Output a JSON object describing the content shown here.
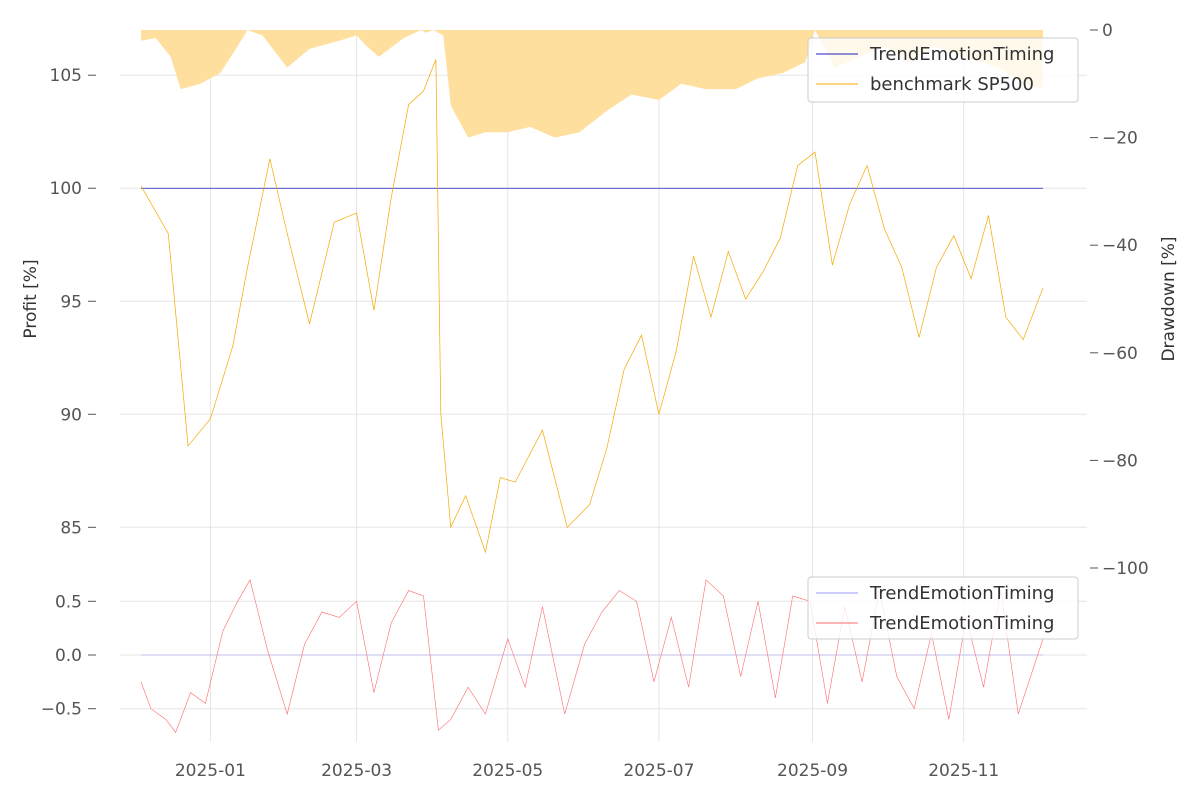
{
  "colors": {
    "strategy": "#1f1fbf",
    "benchmark": "#f5a800",
    "drawdown_fill": "#ffdf9e",
    "indicator_blue": "#9999ff",
    "indicator_red": "#ff6b6b",
    "grid": "#e5e5e5",
    "tick_text": "#555555"
  },
  "chart_data": [
    {
      "type": "line",
      "name": "profit-panel",
      "ylabel": "Profit [%]",
      "ylim": [
        83.2,
        107.0
      ],
      "yticks": [
        85,
        90,
        95,
        100,
        105
      ],
      "ytick_labels": [
        "85",
        "90",
        "95",
        "100",
        "105"
      ],
      "y2label": "Drawdown [%]",
      "y2lim": [
        -100,
        0
      ],
      "y2ticks": [
        0,
        -20,
        -40,
        -60,
        -80,
        -100
      ],
      "y2tick_labels": [
        "0",
        "−20",
        "−40",
        "−60",
        "−80",
        "−100"
      ],
      "grid": true,
      "legend_position": "top-right",
      "legend": [
        "TrendEmotionTiming",
        "benchmark SP500"
      ],
      "x": [
        "2024-12-04",
        "2024-12-15",
        "2024-12-23",
        "2025-01-01",
        "2025-01-10",
        "2025-01-16",
        "2025-01-25",
        "2025-02-01",
        "2025-02-10",
        "2025-02-20",
        "2025-03-01",
        "2025-03-08",
        "2025-03-15",
        "2025-03-22",
        "2025-03-28",
        "2025-04-02",
        "2025-04-04",
        "2025-04-08",
        "2025-04-14",
        "2025-04-22",
        "2025-04-28",
        "2025-05-04",
        "2025-05-15",
        "2025-05-25",
        "2025-06-03",
        "2025-06-10",
        "2025-06-17",
        "2025-06-24",
        "2025-07-01",
        "2025-07-08",
        "2025-07-15",
        "2025-07-22",
        "2025-07-29",
        "2025-08-05",
        "2025-08-12",
        "2025-08-19",
        "2025-08-26",
        "2025-09-02",
        "2025-09-09",
        "2025-09-16",
        "2025-09-23",
        "2025-09-30",
        "2025-10-07",
        "2025-10-14",
        "2025-10-21",
        "2025-10-28",
        "2025-11-04",
        "2025-11-11",
        "2025-11-18",
        "2025-11-25",
        "2025-12-03"
      ],
      "series": [
        {
          "name": "TrendEmotionTiming",
          "color": "#1f1fbf",
          "values": [
            100,
            100,
            100,
            100,
            100,
            100,
            100,
            100,
            100,
            100,
            100,
            100,
            100,
            100,
            100,
            100,
            100,
            100,
            100,
            100,
            100,
            100,
            100,
            100,
            100,
            100,
            100,
            100,
            100,
            100,
            100,
            100,
            100,
            100,
            100,
            100,
            100,
            100,
            100,
            100,
            100,
            100,
            100,
            100,
            100,
            100,
            100,
            100,
            100,
            100,
            100
          ]
        },
        {
          "name": "benchmark SP500",
          "color": "#f5a800",
          "values": [
            100.1,
            98.0,
            88.6,
            89.8,
            93.0,
            96.5,
            101.3,
            98.0,
            94.0,
            98.5,
            98.9,
            94.6,
            99.6,
            103.7,
            104.3,
            105.7,
            90.0,
            85.0,
            86.4,
            83.9,
            87.2,
            87.0,
            89.3,
            85.0,
            86.0,
            88.5,
            92.0,
            93.5,
            90.0,
            92.8,
            97.0,
            94.3,
            97.2,
            95.1,
            96.3,
            97.8,
            101.0,
            101.6,
            96.6,
            99.3,
            101.0,
            98.2,
            96.5,
            93.4,
            96.5,
            97.9,
            96.0,
            98.8,
            94.3,
            93.3,
            95.6
          ]
        }
      ],
      "drawdown": {
        "name": "drawdown",
        "color": "#ffdf9e",
        "x": [
          "2024-12-04",
          "2024-12-10",
          "2024-12-16",
          "2024-12-20",
          "2024-12-28",
          "2025-01-05",
          "2025-01-12",
          "2025-01-16",
          "2025-01-22",
          "2025-02-01",
          "2025-02-10",
          "2025-02-22",
          "2025-03-01",
          "2025-03-05",
          "2025-03-10",
          "2025-03-20",
          "2025-03-27",
          "2025-03-29",
          "2025-04-01",
          "2025-04-03",
          "2025-04-05",
          "2025-04-08",
          "2025-04-15",
          "2025-04-22",
          "2025-05-01",
          "2025-05-10",
          "2025-05-20",
          "2025-05-30",
          "2025-06-10",
          "2025-06-20",
          "2025-07-01",
          "2025-07-10",
          "2025-07-20",
          "2025-08-01",
          "2025-08-10",
          "2025-08-20",
          "2025-08-29",
          "2025-09-02",
          "2025-09-10",
          "2025-09-20",
          "2025-09-30",
          "2025-10-10",
          "2025-10-20",
          "2025-11-01",
          "2025-11-15",
          "2025-11-25",
          "2025-12-03"
        ],
        "values": [
          -2,
          -1.5,
          -5,
          -11,
          -10,
          -8,
          -3,
          0,
          -1,
          -7,
          -3.5,
          -2,
          -1,
          -3,
          -5,
          -1.5,
          0,
          -0.5,
          0,
          -0.5,
          -1,
          -14,
          -20,
          -19,
          -19,
          -18,
          -20,
          -19,
          -15,
          -12,
          -13,
          -10,
          -11,
          -11,
          -9,
          -8,
          -6,
          0,
          -7,
          -5,
          -3,
          -6,
          -3,
          -5,
          -7,
          -10,
          -11
        ]
      }
    },
    {
      "type": "line",
      "name": "indicator-panel",
      "ylim": [
        -0.81,
        0.81
      ],
      "yticks": [
        -0.5,
        0.0,
        0.5
      ],
      "ytick_labels": [
        "−0.5",
        "0.0",
        "0.5"
      ],
      "xtick_labels": [
        "2025-01",
        "2025-03",
        "2025-05",
        "2025-07",
        "2025-09",
        "2025-11"
      ],
      "xticks": [
        "2025-01-01",
        "2025-03-01",
        "2025-05-01",
        "2025-07-01",
        "2025-09-01",
        "2025-11-01"
      ],
      "grid": true,
      "legend_position": "top-right",
      "legend": [
        "TrendEmotionTiming",
        "TrendEmotionTiming"
      ],
      "series": [
        {
          "name": "TrendEmotionTiming",
          "color": "#9999ff",
          "x": [
            "2024-12-04",
            "2025-12-03"
          ],
          "values": [
            0.0,
            0.0
          ]
        },
        {
          "name": "TrendEmotionTiming",
          "color": "#ff6b6b",
          "x": [
            "2024-12-04",
            "2024-12-08",
            "2024-12-14",
            "2024-12-18",
            "2024-12-24",
            "2024-12-30",
            "2025-01-06",
            "2025-01-12",
            "2025-01-17",
            "2025-01-24",
            "2025-02-01",
            "2025-02-08",
            "2025-02-15",
            "2025-02-22",
            "2025-03-01",
            "2025-03-08",
            "2025-03-15",
            "2025-03-22",
            "2025-03-28",
            "2025-04-03",
            "2025-04-08",
            "2025-04-15",
            "2025-04-22",
            "2025-05-01",
            "2025-05-08",
            "2025-05-15",
            "2025-05-24",
            "2025-06-01",
            "2025-06-08",
            "2025-06-15",
            "2025-06-22",
            "2025-06-29",
            "2025-07-06",
            "2025-07-13",
            "2025-07-20",
            "2025-07-27",
            "2025-08-03",
            "2025-08-10",
            "2025-08-17",
            "2025-08-24",
            "2025-08-31",
            "2025-09-07",
            "2025-09-14",
            "2025-09-21",
            "2025-09-28",
            "2025-10-05",
            "2025-10-12",
            "2025-10-19",
            "2025-10-26",
            "2025-11-02",
            "2025-11-09",
            "2025-11-16",
            "2025-11-23",
            "2025-12-03"
          ],
          "values": [
            -0.25,
            -0.5,
            -0.6,
            -0.72,
            -0.35,
            -0.45,
            0.22,
            0.5,
            0.7,
            0.05,
            -0.55,
            0.1,
            0.4,
            0.35,
            0.5,
            -0.35,
            0.3,
            0.6,
            0.55,
            -0.7,
            -0.6,
            -0.3,
            -0.55,
            0.15,
            -0.3,
            0.45,
            -0.55,
            0.1,
            0.4,
            0.6,
            0.5,
            -0.25,
            0.35,
            -0.3,
            0.7,
            0.55,
            -0.2,
            0.5,
            -0.4,
            0.55,
            0.5,
            -0.45,
            0.45,
            -0.25,
            0.6,
            -0.2,
            -0.5,
            0.2,
            -0.6,
            0.35,
            -0.3,
            0.6,
            -0.55,
            0.15
          ]
        }
      ]
    }
  ]
}
